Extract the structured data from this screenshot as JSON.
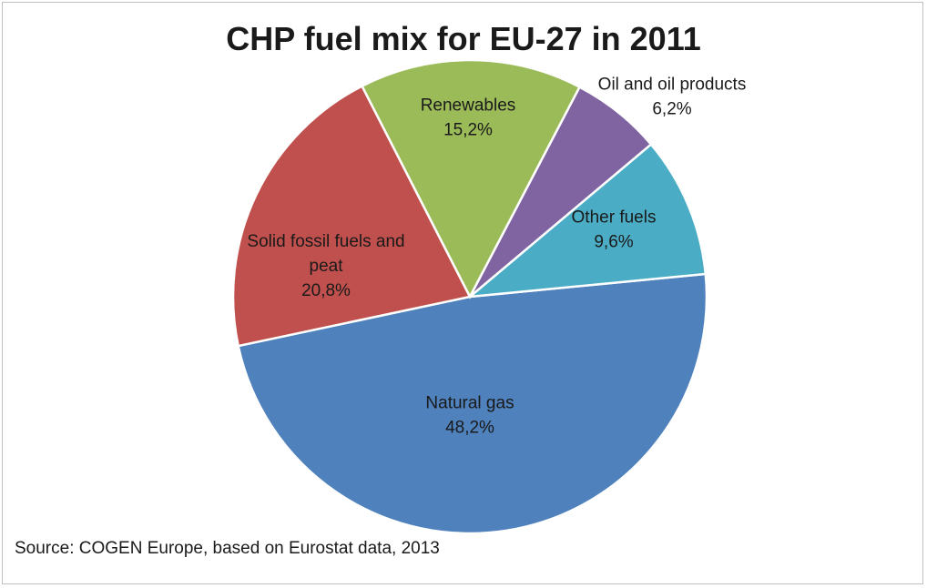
{
  "chart_data": {
    "type": "pie",
    "title": "CHP fuel mix for EU-27 in 2011",
    "source": "Source: COGEN Europe, based on Eurostat data, 2013",
    "slices": [
      {
        "name": "Natural gas",
        "value": 48.2,
        "value_label": "48,2%",
        "color": "#4f81bd",
        "label_lines": [
          "Natural gas"
        ]
      },
      {
        "name": "Other fuels",
        "value": 9.6,
        "value_label": "9,6%",
        "color": "#4bacc6",
        "label_lines": [
          "Other fuels"
        ]
      },
      {
        "name": "Oil and oil products",
        "value": 6.2,
        "value_label": "6,2%",
        "color": "#8064a2",
        "label_lines": [
          "Oil and oil products"
        ]
      },
      {
        "name": "Renewables",
        "value": 15.2,
        "value_label": "15,2%",
        "color": "#9bbb59",
        "label_lines": [
          "Renewables"
        ]
      },
      {
        "name": "Solid fossil fuels and peat",
        "value": 20.8,
        "value_label": "20,8%",
        "color": "#c0504d",
        "label_lines": [
          "Solid fossil fuels and",
          "peat"
        ]
      }
    ]
  }
}
